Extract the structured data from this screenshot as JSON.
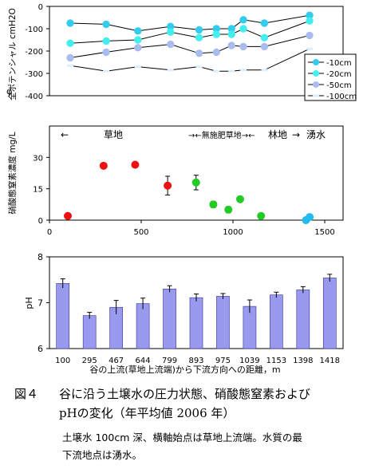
{
  "colors": {
    "plot1_line": "#000000",
    "s10": "#33ccee",
    "s20": "#44eeee",
    "s50": "#aabbee",
    "s100": "#ddeeff",
    "red": "#ee1111",
    "green": "#22cc22",
    "cyan": "#22bbee",
    "bar": "#9999ee",
    "bar_edge": "#333399"
  },
  "chart_data": [
    {
      "type": "line",
      "ylabel": "全ポテンシャル cmH2O",
      "ylabel_prefix": "φ",
      "ylim": [
        -400,
        0
      ],
      "yticks": [
        0,
        -100,
        -200,
        -300,
        -400
      ],
      "x": [
        100,
        295,
        467,
        644,
        799,
        893,
        975,
        1039,
        1153,
        1398
      ],
      "series": [
        {
          "name": "-10cm",
          "values": [
            -75,
            -80,
            -110,
            -90,
            -105,
            -100,
            -100,
            -60,
            -75,
            -40
          ]
        },
        {
          "name": "-20cm",
          "values": [
            -165,
            -155,
            -150,
            -115,
            -140,
            -125,
            -125,
            -100,
            -140,
            -65
          ]
        },
        {
          "name": "-50cm",
          "values": [
            -230,
            -205,
            -185,
            -170,
            -210,
            -205,
            -175,
            -180,
            -180,
            -130
          ]
        },
        {
          "name": "-100cm",
          "values": [
            -265,
            -290,
            -270,
            -285,
            -270,
            -290,
            -290,
            -285,
            -285,
            -190
          ]
        }
      ]
    },
    {
      "type": "scatter",
      "ylabel": "硝酸態窒素濃度 mg/L",
      "ylim": [
        0,
        45
      ],
      "yticks": [
        0,
        15,
        30
      ],
      "xlim": [
        0,
        1600
      ],
      "xticks": [
        0,
        500,
        1000,
        1500
      ],
      "annotations": {
        "left_arrow": "←",
        "a1": "草地",
        "a2": "→←無施肥草地→←",
        "a3": "林地",
        "a4": "→",
        "a5": "湧水"
      },
      "points": [
        {
          "x": 100,
          "y": 2,
          "err": 0,
          "group": "red"
        },
        {
          "x": 295,
          "y": 26,
          "err": 0,
          "group": "red"
        },
        {
          "x": 467,
          "y": 26.5,
          "err": 1,
          "group": "red"
        },
        {
          "x": 644,
          "y": 16.5,
          "err": 4.5,
          "group": "red"
        },
        {
          "x": 799,
          "y": 18,
          "err": 3.5,
          "group": "green"
        },
        {
          "x": 893,
          "y": 7.5,
          "err": 1.5,
          "group": "green"
        },
        {
          "x": 975,
          "y": 5,
          "err": 1.5,
          "group": "green"
        },
        {
          "x": 1039,
          "y": 10,
          "err": 0,
          "group": "green"
        },
        {
          "x": 1153,
          "y": 2,
          "err": 0,
          "group": "green"
        },
        {
          "x": 1398,
          "y": 0,
          "err": 0,
          "group": "cyan"
        },
        {
          "x": 1418,
          "y": 1.5,
          "err": 0,
          "group": "cyan"
        }
      ]
    },
    {
      "type": "bar",
      "ylabel": "pH",
      "xlabel": "谷の上流(草地上流端)から下流方向への距離，m",
      "ylim": [
        6,
        8
      ],
      "yticks": [
        6,
        7,
        8
      ],
      "categories": [
        "100",
        "295",
        "467",
        "644",
        "799",
        "893",
        "975",
        "1039",
        "1153",
        "1398",
        "1418"
      ],
      "values": [
        7.42,
        6.72,
        6.9,
        6.98,
        7.3,
        7.11,
        7.14,
        6.92,
        7.17,
        7.28,
        7.54
      ],
      "errors": [
        0.1,
        0.07,
        0.15,
        0.12,
        0.07,
        0.08,
        0.06,
        0.14,
        0.06,
        0.07,
        0.08
      ]
    }
  ],
  "caption": {
    "fig_num": "図４",
    "title_line1": "谷に沿う土壌水の圧力状態、硝酸態窒素および",
    "title_line2": "pHの変化（年平均値 2006 年）",
    "note_line1": "土壌水 100cm 深、横軸始点は草地上流端。水質の最",
    "note_line2": "下流地点は湧水。"
  }
}
